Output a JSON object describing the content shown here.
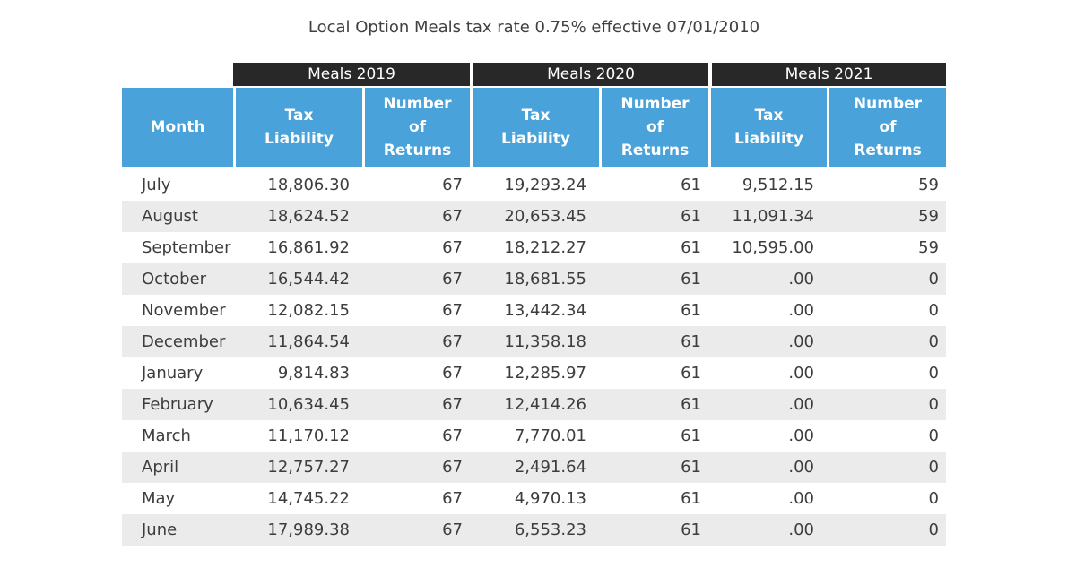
{
  "title": "Local Option Meals tax rate 0.75% effective 07/01/2010",
  "table": {
    "groups": [
      "Meals 2019",
      "Meals 2020",
      "Meals 2021"
    ],
    "columns": {
      "month": "Month",
      "tax": "Tax Liability",
      "returns": "Number of Returns"
    },
    "rows": [
      {
        "month": "July",
        "y2019_tax": "18,806.30",
        "y2019_returns": "67",
        "y2020_tax": "19,293.24",
        "y2020_returns": "61",
        "y2021_tax": "9,512.15",
        "y2021_returns": "59"
      },
      {
        "month": "August",
        "y2019_tax": "18,624.52",
        "y2019_returns": "67",
        "y2020_tax": "20,653.45",
        "y2020_returns": "61",
        "y2021_tax": "11,091.34",
        "y2021_returns": "59"
      },
      {
        "month": "September",
        "y2019_tax": "16,861.92",
        "y2019_returns": "67",
        "y2020_tax": "18,212.27",
        "y2020_returns": "61",
        "y2021_tax": "10,595.00",
        "y2021_returns": "59"
      },
      {
        "month": "October",
        "y2019_tax": "16,544.42",
        "y2019_returns": "67",
        "y2020_tax": "18,681.55",
        "y2020_returns": "61",
        "y2021_tax": ".00",
        "y2021_returns": "0"
      },
      {
        "month": "November",
        "y2019_tax": "12,082.15",
        "y2019_returns": "67",
        "y2020_tax": "13,442.34",
        "y2020_returns": "61",
        "y2021_tax": ".00",
        "y2021_returns": "0"
      },
      {
        "month": "December",
        "y2019_tax": "11,864.54",
        "y2019_returns": "67",
        "y2020_tax": "11,358.18",
        "y2020_returns": "61",
        "y2021_tax": ".00",
        "y2021_returns": "0"
      },
      {
        "month": "January",
        "y2019_tax": "9,814.83",
        "y2019_returns": "67",
        "y2020_tax": "12,285.97",
        "y2020_returns": "61",
        "y2021_tax": ".00",
        "y2021_returns": "0"
      },
      {
        "month": "February",
        "y2019_tax": "10,634.45",
        "y2019_returns": "67",
        "y2020_tax": "12,414.26",
        "y2020_returns": "61",
        "y2021_tax": ".00",
        "y2021_returns": "0"
      },
      {
        "month": "March",
        "y2019_tax": "11,170.12",
        "y2019_returns": "67",
        "y2020_tax": "7,770.01",
        "y2020_returns": "61",
        "y2021_tax": ".00",
        "y2021_returns": "0"
      },
      {
        "month": "April",
        "y2019_tax": "12,757.27",
        "y2019_returns": "67",
        "y2020_tax": "2,491.64",
        "y2020_returns": "61",
        "y2021_tax": ".00",
        "y2021_returns": "0"
      },
      {
        "month": "May",
        "y2019_tax": "14,745.22",
        "y2019_returns": "67",
        "y2020_tax": "4,970.13",
        "y2020_returns": "61",
        "y2021_tax": ".00",
        "y2021_returns": "0"
      },
      {
        "month": "June",
        "y2019_tax": "17,989.38",
        "y2019_returns": "67",
        "y2020_tax": "6,553.23",
        "y2020_returns": "61",
        "y2021_tax": ".00",
        "y2021_returns": "0"
      }
    ]
  },
  "colors": {
    "header_group_bg": "#282828",
    "header_column_bg": "#49a2d9",
    "row_stripe_bg": "#ebebeb",
    "text": "#3d3d3d",
    "bottom_rule": "#2e3456"
  },
  "chart_data": {
    "type": "table",
    "title": "Local Option Meals tax rate 0.75% effective 07/01/2010",
    "column_groups": [
      "Meals 2019",
      "Meals 2020",
      "Meals 2021"
    ],
    "columns": [
      "Month",
      "Tax Liability",
      "Number of Returns",
      "Tax Liability",
      "Number of Returns",
      "Tax Liability",
      "Number of Returns"
    ],
    "rows": [
      [
        "July",
        18806.3,
        67,
        19293.24,
        61,
        9512.15,
        59
      ],
      [
        "August",
        18624.52,
        67,
        20653.45,
        61,
        11091.34,
        59
      ],
      [
        "September",
        16861.92,
        67,
        18212.27,
        61,
        10595.0,
        59
      ],
      [
        "October",
        16544.42,
        67,
        18681.55,
        61,
        0.0,
        0
      ],
      [
        "November",
        12082.15,
        67,
        13442.34,
        61,
        0.0,
        0
      ],
      [
        "December",
        11864.54,
        67,
        11358.18,
        61,
        0.0,
        0
      ],
      [
        "January",
        9814.83,
        67,
        12285.97,
        61,
        0.0,
        0
      ],
      [
        "February",
        10634.45,
        67,
        12414.26,
        61,
        0.0,
        0
      ],
      [
        "March",
        11170.12,
        67,
        7770.01,
        61,
        0.0,
        0
      ],
      [
        "April",
        12757.27,
        67,
        2491.64,
        61,
        0.0,
        0
      ],
      [
        "May",
        14745.22,
        67,
        4970.13,
        61,
        0.0,
        0
      ],
      [
        "June",
        17989.38,
        67,
        6553.23,
        61,
        0.0,
        0
      ]
    ]
  }
}
